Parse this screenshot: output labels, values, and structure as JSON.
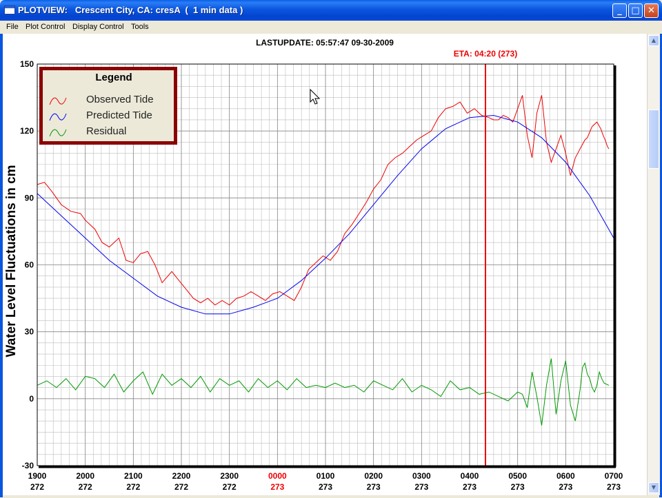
{
  "window": {
    "title": "PLOTVIEW:   Crescent City, CA: cresA  (  1 min data )",
    "buttons": {
      "minimize": "_",
      "maximize": "□",
      "close": "✕"
    }
  },
  "menu": [
    "File",
    "Plot Control",
    "Display Control",
    "Tools"
  ],
  "plot": {
    "lastupdate": "LASTUPDATE: 05:57:47  09-30-2009",
    "eta": "ETA: 04:20 (273)"
  },
  "colors": {
    "observed": "#ee0000",
    "predicted": "#0000ee",
    "residual": "#009900",
    "eta_line": "#ee0000",
    "legend_border": "#8b0000"
  },
  "chart_data": {
    "type": "line",
    "ylabel": "Water Level Fluctuations in cm",
    "ylim": [
      -30,
      150
    ],
    "yticks": [
      -30,
      0,
      30,
      60,
      90,
      120,
      150
    ],
    "xlim": [
      0,
      12
    ],
    "xticks": [
      {
        "time": "1900",
        "day": "272",
        "highlight": false
      },
      {
        "time": "2000",
        "day": "272",
        "highlight": false
      },
      {
        "time": "2100",
        "day": "272",
        "highlight": false
      },
      {
        "time": "2200",
        "day": "272",
        "highlight": false
      },
      {
        "time": "2300",
        "day": "272",
        "highlight": false
      },
      {
        "time": "0000",
        "day": "273",
        "highlight": true
      },
      {
        "time": "0100",
        "day": "273",
        "highlight": false
      },
      {
        "time": "0200",
        "day": "273",
        "highlight": false
      },
      {
        "time": "0300",
        "day": "273",
        "highlight": false
      },
      {
        "time": "0400",
        "day": "273",
        "highlight": false
      },
      {
        "time": "0500",
        "day": "273",
        "highlight": false
      },
      {
        "time": "0600",
        "day": "273",
        "highlight": false
      },
      {
        "time": "0700",
        "day": "273",
        "highlight": false
      }
    ],
    "eta_x": 9.33,
    "legend": [
      "Observed Tide",
      "Predicted Tide",
      "Residual"
    ],
    "legend_title": "Legend",
    "grid": true,
    "series": [
      {
        "name": "Observed Tide",
        "color": "#ee0000",
        "x": [
          0,
          0.15,
          0.3,
          0.5,
          0.7,
          0.9,
          1.0,
          1.2,
          1.35,
          1.5,
          1.7,
          1.85,
          2.0,
          2.15,
          2.3,
          2.45,
          2.6,
          2.8,
          2.95,
          3.1,
          3.25,
          3.4,
          3.55,
          3.7,
          3.85,
          4.0,
          4.15,
          4.3,
          4.45,
          4.6,
          4.75,
          4.9,
          5.05,
          5.2,
          5.35,
          5.5,
          5.65,
          5.8,
          5.95,
          6.1,
          6.25,
          6.4,
          6.55,
          6.7,
          6.85,
          7.0,
          7.15,
          7.3,
          7.45,
          7.6,
          7.75,
          7.9,
          8.05,
          8.2,
          8.35,
          8.5,
          8.65,
          8.8,
          8.95,
          9.1,
          9.25,
          9.4,
          9.5,
          9.6,
          9.7,
          9.8,
          9.9,
          10.0,
          10.1,
          10.2,
          10.3,
          10.4,
          10.5,
          10.6,
          10.7,
          10.8,
          10.9,
          11.0,
          11.1,
          11.2,
          11.3,
          11.4,
          11.45,
          11.55,
          11.65,
          11.73,
          11.78,
          11.82,
          11.87,
          11.9
        ],
        "y": [
          96,
          97,
          93,
          87,
          84,
          83,
          80,
          76,
          70,
          68,
          72,
          62,
          61,
          65,
          66,
          60,
          52,
          57,
          53,
          49,
          45,
          43,
          45,
          42,
          44,
          42,
          45,
          46,
          48,
          46,
          44,
          47,
          48,
          46,
          44,
          50,
          58,
          61,
          64,
          62,
          66,
          74,
          78,
          83,
          88,
          94,
          98,
          105,
          108,
          110,
          113,
          116,
          118,
          120,
          126,
          130,
          131,
          133,
          128,
          130,
          127,
          126,
          125,
          125,
          127,
          126,
          124,
          130,
          136,
          118,
          108,
          128,
          136,
          115,
          106,
          112,
          118,
          110,
          100,
          108,
          112,
          116,
          117,
          122,
          124,
          121,
          118,
          116,
          113,
          112
        ]
      },
      {
        "name": "Predicted Tide",
        "color": "#0000ee",
        "x": [
          0,
          0.5,
          1.0,
          1.5,
          2.0,
          2.5,
          3.0,
          3.5,
          4.0,
          4.5,
          5.0,
          5.5,
          6.0,
          6.5,
          7.0,
          7.5,
          8.0,
          8.5,
          9.0,
          9.5,
          10.0,
          10.5,
          11.0,
          11.5,
          12.0
        ],
        "y": [
          92,
          82,
          72,
          62,
          54,
          46,
          41,
          38,
          38,
          41,
          45,
          53,
          63,
          74,
          87,
          100,
          112,
          121,
          126,
          127,
          124,
          117,
          106,
          91,
          72
        ]
      },
      {
        "name": "Residual",
        "color": "#009900",
        "x": [
          0,
          0.2,
          0.4,
          0.6,
          0.8,
          1.0,
          1.2,
          1.4,
          1.6,
          1.8,
          2.0,
          2.2,
          2.4,
          2.6,
          2.8,
          3.0,
          3.2,
          3.4,
          3.6,
          3.8,
          4.0,
          4.2,
          4.4,
          4.6,
          4.8,
          5.0,
          5.2,
          5.4,
          5.6,
          5.8,
          6.0,
          6.2,
          6.4,
          6.6,
          6.8,
          7.0,
          7.2,
          7.4,
          7.6,
          7.8,
          8.0,
          8.2,
          8.4,
          8.6,
          8.8,
          9.0,
          9.2,
          9.4,
          9.6,
          9.8,
          10.0,
          10.1,
          10.2,
          10.3,
          10.4,
          10.5,
          10.6,
          10.7,
          10.8,
          10.9,
          11.0,
          11.1,
          11.2,
          11.3,
          11.35,
          11.4,
          11.45,
          11.5,
          11.55,
          11.6,
          11.65,
          11.7,
          11.75,
          11.8,
          11.9
        ],
        "y": [
          6,
          8,
          5,
          9,
          4,
          10,
          9,
          5,
          11,
          3,
          8,
          12,
          2,
          11,
          6,
          9,
          5,
          10,
          3,
          9,
          6,
          8,
          3,
          9,
          5,
          8,
          4,
          9,
          5,
          6,
          5,
          7,
          5,
          6,
          3,
          8,
          6,
          4,
          9,
          3,
          6,
          4,
          1,
          8,
          4,
          5,
          2,
          3,
          1,
          -1,
          3,
          2,
          -4,
          12,
          1,
          -12,
          6,
          18,
          -7,
          8,
          17,
          -3,
          -10,
          4,
          14,
          16,
          11,
          9,
          5,
          3,
          6,
          12,
          9,
          7,
          6
        ]
      }
    ]
  }
}
